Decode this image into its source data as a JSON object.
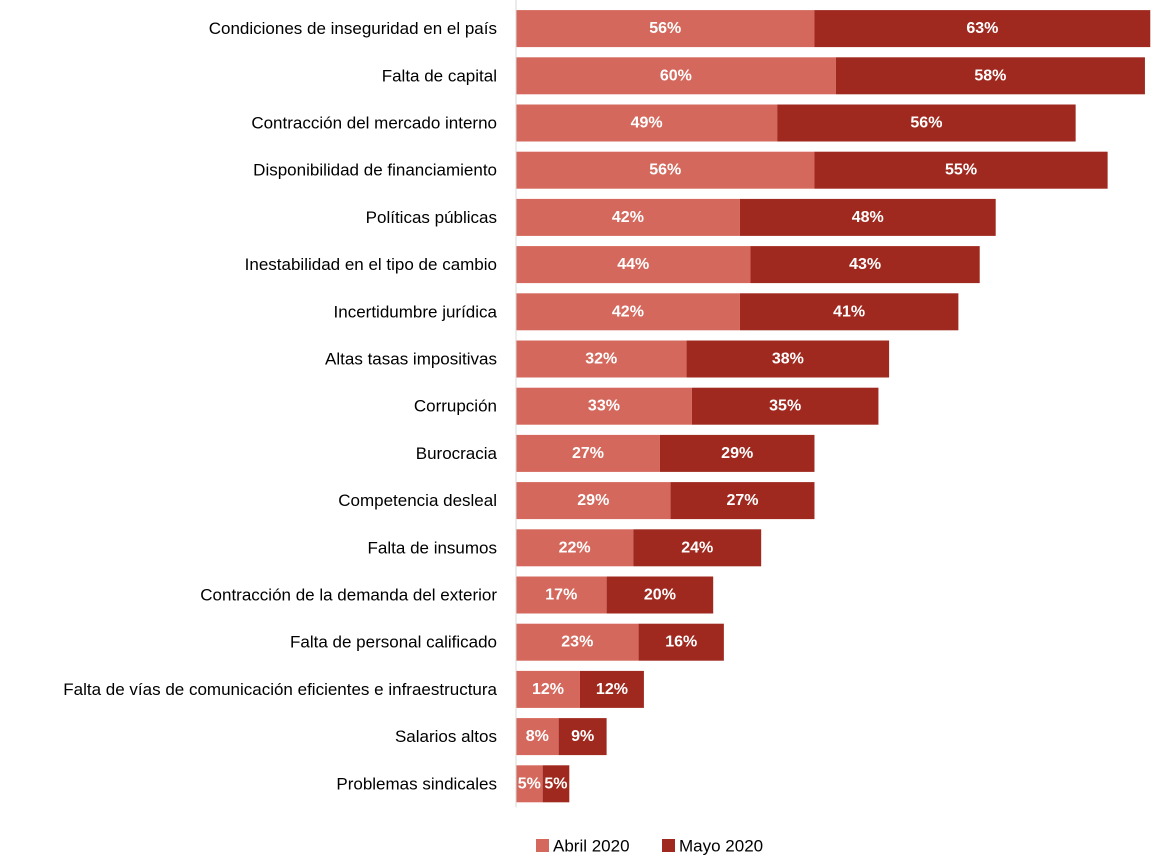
{
  "chart_data": {
    "type": "bar",
    "orientation": "horizontal",
    "stacked": true,
    "categories": [
      "Condiciones de inseguridad en el país",
      "Falta de capital",
      "Contracción del mercado interno",
      "Disponibilidad de financiamiento",
      "Políticas públicas",
      "Inestabilidad en el tipo de cambio",
      "Incertidumbre jurídica",
      "Altas tasas impositivas",
      "Corrupción",
      "Burocracia",
      "Competencia desleal",
      "Falta de insumos",
      "Contracción de la demanda del exterior",
      "Falta de personal calificado",
      "Falta de vías de comunicación eficientes e infraestructura",
      "Salarios altos",
      "Problemas sindicales"
    ],
    "series": [
      {
        "name": "Abril 2020",
        "color": "#d4685c",
        "values": [
          56,
          60,
          49,
          56,
          42,
          44,
          42,
          32,
          33,
          27,
          29,
          22,
          17,
          23,
          12,
          8,
          5
        ],
        "labels": [
          "56%",
          "60%",
          "49%",
          "56%",
          "42%",
          "44%",
          "42%",
          "32%",
          "33%",
          "27%",
          "29%",
          "22%",
          "17%",
          "23%",
          "12%",
          "8%",
          "5%"
        ]
      },
      {
        "name": "Mayo 2020",
        "color": "#a0291f",
        "values": [
          63,
          58,
          56,
          55,
          48,
          43,
          41,
          38,
          35,
          29,
          27,
          24,
          20,
          16,
          12,
          9,
          5
        ],
        "labels": [
          "63%",
          "58%",
          "56%",
          "55%",
          "48%",
          "43%",
          "41%",
          "38%",
          "35%",
          "29%",
          "27%",
          "24%",
          "20%",
          "16%",
          "12%",
          "9%",
          "5%"
        ]
      }
    ],
    "xlim": [
      0,
      119
    ],
    "grid": false,
    "legend_position": "bottom-center",
    "title": "",
    "xlabel": "",
    "ylabel": ""
  }
}
